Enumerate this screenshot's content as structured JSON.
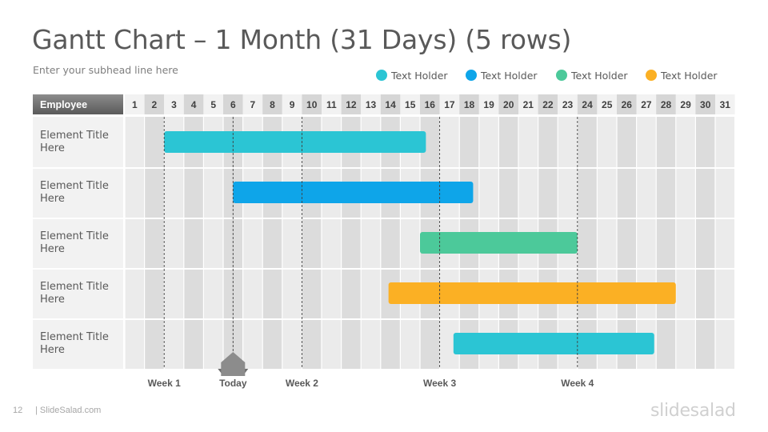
{
  "page": {
    "title": "Gantt Chart – 1 Month (31 Days) (5 rows)",
    "subtitle": "Enter your subhead  line here",
    "slide_number": "12",
    "footer_brand": "| SlideSalad.com",
    "logo_text": "slidesalad"
  },
  "legend": [
    {
      "label": "Text Holder",
      "color": "#2bc5d4"
    },
    {
      "label": "Text Holder",
      "color": "#0ea5e9"
    },
    {
      "label": "Text Holder",
      "color": "#4cc99a"
    },
    {
      "label": "Text Holder",
      "color": "#fbb024"
    }
  ],
  "chart_data": {
    "type": "gantt",
    "header_label": "Employee",
    "days": [
      "1",
      "2",
      "3",
      "4",
      "5",
      "6",
      "7",
      "8",
      "9",
      "10",
      "11",
      "12",
      "13",
      "14",
      "15",
      "16",
      "17",
      "18",
      "19",
      "20",
      "21",
      "22",
      "23",
      "24",
      "25",
      "26",
      "27",
      "28",
      "29",
      "30",
      "31"
    ],
    "rows": [
      {
        "label": "Element Title Here",
        "start": 2.0,
        "end": 15.3,
        "color": "#2bc5d4"
      },
      {
        "label": "Element Title Here",
        "start": 5.5,
        "end": 17.7,
        "color": "#0ea5e9"
      },
      {
        "label": "Element Title Here",
        "start": 15.0,
        "end": 23.0,
        "color": "#4cc99a"
      },
      {
        "label": "Element Title Here",
        "start": 13.4,
        "end": 28.0,
        "color": "#fbb024"
      },
      {
        "label": "Element Title Here",
        "start": 16.7,
        "end": 26.9,
        "color": "#2bc5d4"
      }
    ],
    "markers": [
      {
        "label": "Week 1",
        "day": 2.0,
        "type": "week"
      },
      {
        "label": "Today",
        "day": 5.5,
        "type": "today"
      },
      {
        "label": "Week 2",
        "day": 9.0,
        "type": "week"
      },
      {
        "label": "Week 3",
        "day": 16.0,
        "type": "week"
      },
      {
        "label": "Week 4",
        "day": 23.0,
        "type": "week"
      }
    ]
  }
}
